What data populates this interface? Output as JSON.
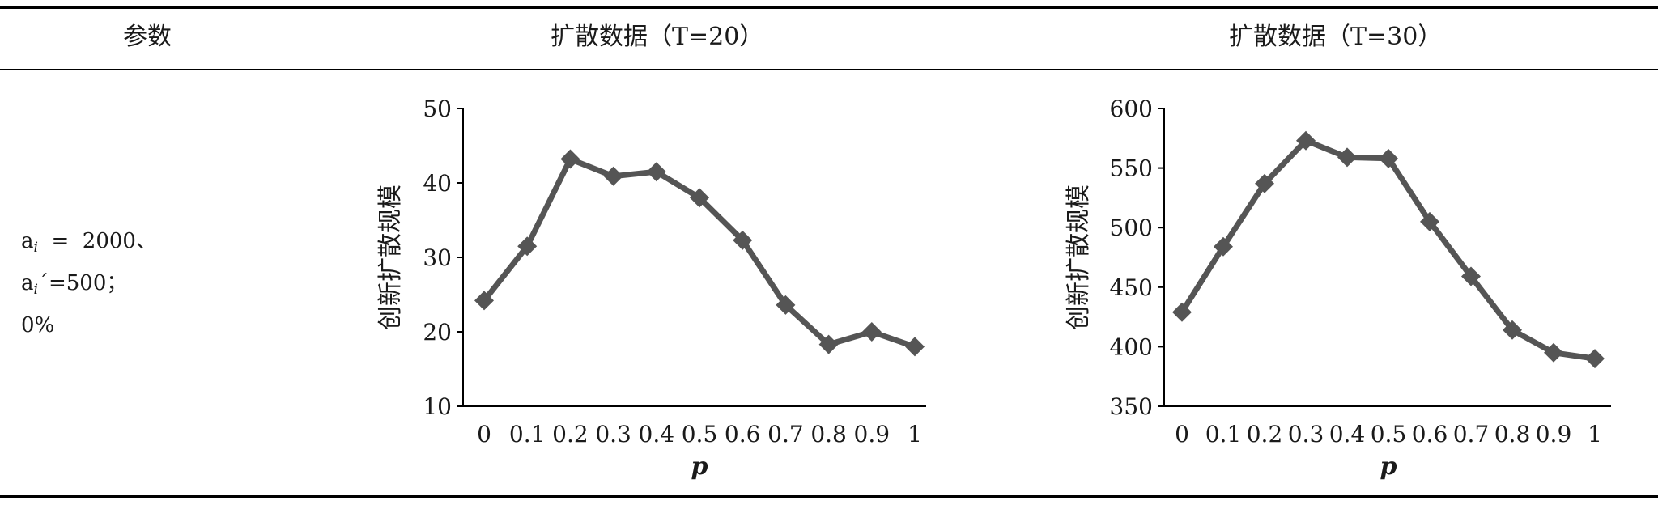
{
  "header": {
    "col_param": "参数",
    "col_t20": "扩散数据（T=20）",
    "col_t30": "扩散数据（T=30）"
  },
  "params": {
    "line1_base": "a",
    "line1_sub": "i",
    "line1_rest": "  =  2000、",
    "line2_base": "a",
    "line2_sub": "i",
    "line2_rest": "´=500；",
    "line3": "0%"
  },
  "colors": {
    "series": "#555555",
    "axis": "#000000"
  },
  "chart_data": [
    {
      "type": "line",
      "x": [
        0,
        0.1,
        0.2,
        0.3,
        0.4,
        0.5,
        0.6,
        0.7,
        0.8,
        0.9,
        1
      ],
      "x_tick_labels": [
        "0",
        "0.1",
        "0.2",
        "0.3",
        "0.4",
        "0.5",
        "0.6",
        "0.7",
        "0.8",
        "0.9",
        "1"
      ],
      "series": [
        {
          "values": [
            24.2,
            31.5,
            43.2,
            40.9,
            41.5,
            38,
            32.3,
            23.6,
            18.3,
            20,
            18
          ]
        }
      ],
      "marker": "diamond",
      "xlabel": "p",
      "ylabel": "创新扩散规模",
      "ylim": [
        10,
        50
      ],
      "yticks": [
        10,
        20,
        30,
        40,
        50
      ],
      "grid": false
    },
    {
      "type": "line",
      "x": [
        0,
        0.1,
        0.2,
        0.3,
        0.4,
        0.5,
        0.6,
        0.7,
        0.8,
        0.9,
        1
      ],
      "x_tick_labels": [
        "0",
        "0.1",
        "0.2",
        "0.3",
        "0.4",
        "0.5",
        "0.6",
        "0.7",
        "0.8",
        "0.9",
        "1"
      ],
      "series": [
        {
          "values": [
            429,
            484,
            537,
            573,
            559,
            558,
            505,
            459,
            414,
            395,
            390
          ]
        }
      ],
      "marker": "diamond",
      "xlabel": "p",
      "ylabel": "创新扩散规模",
      "ylim": [
        350,
        600
      ],
      "yticks": [
        350,
        400,
        450,
        500,
        550,
        600
      ],
      "grid": false
    }
  ]
}
